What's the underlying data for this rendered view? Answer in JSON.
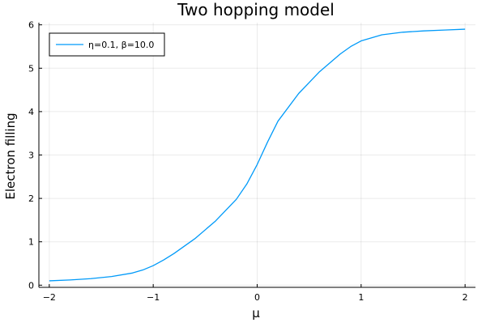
{
  "chart_data": {
    "type": "line",
    "title": "Two hopping model",
    "xlabel": "μ",
    "ylabel": "Electron filling",
    "xlim": [
      -2.1,
      2.1
    ],
    "ylim": [
      -0.05,
      6.05
    ],
    "xticks": [
      -2,
      -1,
      0,
      1,
      2
    ],
    "xtick_labels": [
      "−2",
      "−1",
      "0",
      "1",
      "2"
    ],
    "yticks": [
      0,
      1,
      2,
      3,
      4,
      5,
      6
    ],
    "ytick_labels": [
      "0",
      "1",
      "2",
      "3",
      "4",
      "5",
      "6"
    ],
    "grid": true,
    "legend_position": "top-left",
    "series": [
      {
        "name": "η=0.1, β=10.0",
        "color": "#009AF9",
        "x": [
          -2.0,
          -1.8,
          -1.6,
          -1.4,
          -1.2,
          -1.1,
          -1.0,
          -0.9,
          -0.8,
          -0.6,
          -0.4,
          -0.2,
          -0.1,
          0.0,
          0.1,
          0.2,
          0.4,
          0.6,
          0.8,
          0.9,
          1.0,
          1.1,
          1.2,
          1.4,
          1.6,
          1.8,
          2.0
        ],
        "y": [
          0.1,
          0.12,
          0.15,
          0.2,
          0.28,
          0.35,
          0.45,
          0.58,
          0.73,
          1.07,
          1.48,
          1.98,
          2.33,
          2.78,
          3.3,
          3.78,
          4.42,
          4.92,
          5.33,
          5.5,
          5.63,
          5.7,
          5.77,
          5.83,
          5.86,
          5.88,
          5.9
        ]
      }
    ]
  }
}
